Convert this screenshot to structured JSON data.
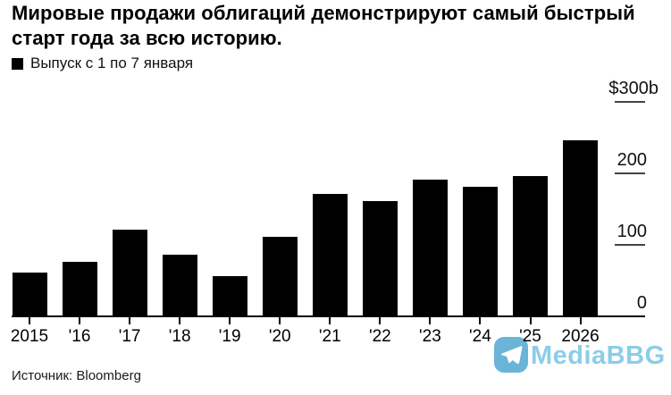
{
  "title": "Мировые продажи облигаций демонстрируют самый быстрый старт года за всю историю.",
  "legend": {
    "label": "Выпуск с 1 по 7 января",
    "swatch_color": "#000000"
  },
  "source": "Источник: Bloomberg",
  "watermark": {
    "text": "MediaBBG",
    "icon": "telegram-plane-icon",
    "icon_color": "#5fb0d4",
    "text_color": "#85cbe7"
  },
  "colors": {
    "bar": "#000000",
    "axis_line": "#000000",
    "axis_tick": "#444444",
    "background": "#ffffff"
  },
  "chart_data": {
    "type": "bar",
    "title": "Мировые продажи облигаций демонстрируют самый быстрый старт года за всю историю.",
    "legend": "Выпуск с 1 по 7 января",
    "unit": "$ billions",
    "categories": [
      "2015",
      "'16",
      "'17",
      "'18",
      "'19",
      "'20",
      "'21",
      "'22",
      "'23",
      "'24",
      "'25",
      "2026"
    ],
    "values": [
      60,
      75,
      120,
      85,
      55,
      110,
      170,
      160,
      190,
      180,
      195,
      245
    ],
    "ylim": [
      0,
      300
    ],
    "yticks": [
      300,
      200,
      100,
      0
    ],
    "ytick_labels": [
      "$300b",
      "200",
      "100",
      "0"
    ],
    "grid": false,
    "bar_color": "#000000",
    "legend_position": "top-left",
    "y_axis_position": "right",
    "source": "Источник: Bloomberg"
  }
}
